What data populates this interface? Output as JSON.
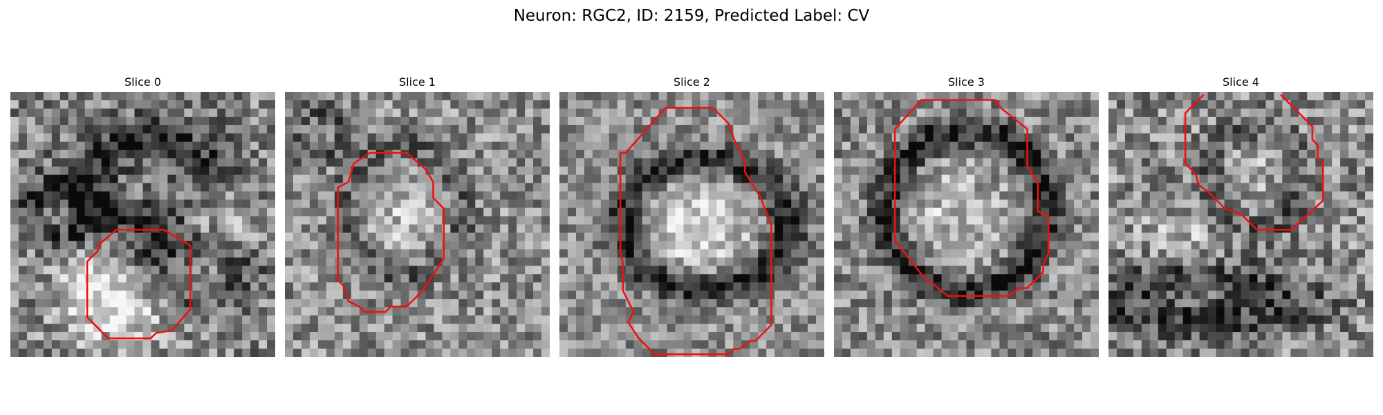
{
  "figure": {
    "title": "Neuron: RGC2, ID: 2159, Predicted Label: CV"
  },
  "colors": {
    "contour": "#ee1111",
    "background": "#ffffff"
  },
  "panels": [
    {
      "title": "Slice 0"
    },
    {
      "title": "Slice 1"
    },
    {
      "title": "Slice 2"
    },
    {
      "title": "Slice 3"
    },
    {
      "title": "Slice 4"
    }
  ]
}
